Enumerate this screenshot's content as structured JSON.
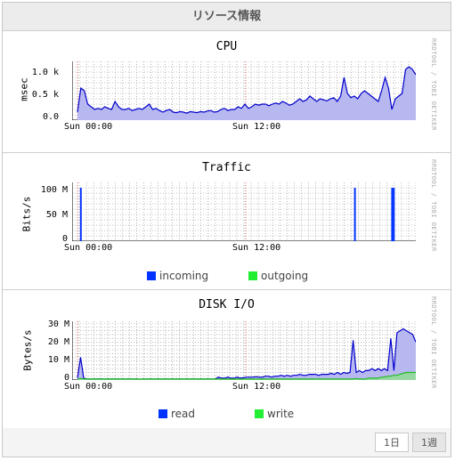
{
  "header": {
    "title": "リソース情報"
  },
  "watermark": "RRDTOOL / TOBI OETIKER",
  "x_ticks": [
    "Sun 00:00",
    "Sun 12:00"
  ],
  "cpu": {
    "title": "CPU",
    "ylabel": "msec",
    "y_ticks": [
      "1.0 k",
      "0.5 k",
      "0.0"
    ],
    "chart_data": {
      "type": "area",
      "title": "CPU",
      "ylabel": "msec",
      "ylim": [
        0,
        1.1
      ],
      "unit": "k",
      "x_ticks": [
        "Sun 00:00",
        "Sun 12:00"
      ],
      "series": [
        {
          "color": "#0000cc",
          "fill": "#b8b8f0",
          "values": [
            0.15,
            0.6,
            0.55,
            0.3,
            0.25,
            0.2,
            0.22,
            0.2,
            0.25,
            0.22,
            0.2,
            0.35,
            0.25,
            0.2,
            0.2,
            0.22,
            0.18,
            0.2,
            0.22,
            0.2,
            0.25,
            0.3,
            0.2,
            0.22,
            0.18,
            0.15,
            0.18,
            0.2,
            0.15,
            0.14,
            0.16,
            0.15,
            0.13,
            0.16,
            0.15,
            0.14,
            0.16,
            0.15,
            0.17,
            0.18,
            0.15,
            0.16,
            0.2,
            0.22,
            0.18,
            0.2,
            0.2,
            0.25,
            0.22,
            0.3,
            0.22,
            0.25,
            0.3,
            0.28,
            0.3,
            0.3,
            0.27,
            0.3,
            0.32,
            0.3,
            0.35,
            0.32,
            0.28,
            0.3,
            0.35,
            0.4,
            0.35,
            0.38,
            0.45,
            0.4,
            0.35,
            0.4,
            0.38,
            0.36,
            0.4,
            0.42,
            0.35,
            0.45,
            0.8,
            0.5,
            0.42,
            0.45,
            0.4,
            0.5,
            0.55,
            0.5,
            0.45,
            0.4,
            0.35,
            0.55,
            0.8,
            0.6,
            0.2,
            0.4,
            0.45,
            0.5,
            0.95,
            1.0,
            0.95,
            0.85
          ]
        }
      ]
    }
  },
  "traffic": {
    "title": "Traffic",
    "ylabel": "Bits/s",
    "y_ticks": [
      "100 M",
      "50 M",
      "0"
    ],
    "chart_data": {
      "type": "line",
      "title": "Traffic",
      "ylabel": "Bits/s",
      "ylim": [
        0,
        110
      ],
      "unit": "M",
      "x_ticks": [
        "Sun 00:00",
        "Sun 12:00"
      ],
      "series": [
        {
          "name": "incoming",
          "color": "#0033ff",
          "spikes": [
            [
              0.01,
              100
            ],
            [
              0.82,
              100
            ],
            [
              0.93,
              100
            ],
            [
              0.935,
              100
            ]
          ]
        },
        {
          "name": "outgoing",
          "color": "#00ee33",
          "spikes": []
        }
      ]
    },
    "legend": [
      {
        "label": "incoming",
        "color": "#0033ff"
      },
      {
        "label": "outgoing",
        "color": "#22ee33"
      }
    ]
  },
  "disk": {
    "title": "DISK I/O",
    "ylabel": "Bytes/s",
    "y_ticks": [
      "30 M",
      "20 M",
      "10 M",
      "0"
    ],
    "chart_data": {
      "type": "area",
      "title": "DISK I/O",
      "ylabel": "Bytes/s",
      "ylim": [
        0,
        31
      ],
      "unit": "M",
      "x_ticks": [
        "Sun 00:00",
        "Sun 12:00"
      ],
      "series": [
        {
          "name": "read",
          "color": "#0000cc",
          "fill": "#b8b8f0",
          "values": [
            1,
            12,
            1,
            0.5,
            0.5,
            0.5,
            0.5,
            0.6,
            0.5,
            0.5,
            0.5,
            0.5,
            0.5,
            0.5,
            0.5,
            0.5,
            0.5,
            0.5,
            0.5,
            0.5,
            0.4,
            0.5,
            0.5,
            0.5,
            0.5,
            0.5,
            0.5,
            0.5,
            0.5,
            0.5,
            0.5,
            0.5,
            0.5,
            0.5,
            0.5,
            0.5,
            0.5,
            0.5,
            0.5,
            0.5,
            0.5,
            0.5,
            0.5,
            0.5,
            0.5,
            1.5,
            1,
            1,
            1.5,
            1,
            1,
            1.5,
            1,
            1.2,
            1.5,
            1.5,
            1.5,
            1.8,
            1.5,
            1.5,
            2,
            2,
            1.5,
            2,
            2,
            2.5,
            2,
            2.5,
            2,
            2.5,
            2.5,
            3,
            2.5,
            2.5,
            3,
            3,
            3,
            2.5,
            3,
            3,
            3,
            3.5,
            3,
            4,
            3,
            4,
            3.5,
            4,
            21,
            4,
            5,
            4,
            5,
            5,
            6,
            5,
            6,
            5,
            6,
            5,
            22,
            5,
            25,
            26,
            27,
            26,
            25,
            24,
            20
          ]
        },
        {
          "name": "write",
          "color": "#22bb22",
          "fill": "#8ee08e",
          "values": [
            0.5,
            0.8,
            0.6,
            0.5,
            0.5,
            0.5,
            0.5,
            0.5,
            0.5,
            0.5,
            0.5,
            0.5,
            0.5,
            0.5,
            0.5,
            0.5,
            0.5,
            0.5,
            0.5,
            0.5,
            0.5,
            0.5,
            0.5,
            0.5,
            0.5,
            0.5,
            0.5,
            0.5,
            0.5,
            0.5,
            0.5,
            0.5,
            0.5,
            0.5,
            0.5,
            0.5,
            0.5,
            0.5,
            0.5,
            0.5,
            0.5,
            0.5,
            0.5,
            0.5,
            0.5,
            0.5,
            0.5,
            0.5,
            0.5,
            0.5,
            0.5,
            0.5,
            0.5,
            0.5,
            0.5,
            0.5,
            0.5,
            0.5,
            0.5,
            0.5,
            0.5,
            0.5,
            0.5,
            0.5,
            0.5,
            0.5,
            0.5,
            0.5,
            0.5,
            0.5,
            0.5,
            0.5,
            0.5,
            0.5,
            0.5,
            0.5,
            0.5,
            0.5,
            0.5,
            0.5,
            0.5,
            0.5,
            0.5,
            0.5,
            0.5,
            0.5,
            0.5,
            0.5,
            0.8,
            0.5,
            0.5,
            0.5,
            1,
            1,
            1,
            1,
            1.5,
            1.5,
            2,
            2,
            2.5,
            2.5,
            3,
            3.5,
            4,
            4,
            4,
            4
          ]
        }
      ]
    },
    "legend": [
      {
        "label": "read",
        "color": "#0033ff"
      },
      {
        "label": "write",
        "color": "#22ee33"
      }
    ]
  },
  "footer": {
    "buttons": [
      {
        "label": "1日",
        "active": false
      },
      {
        "label": "1週",
        "active": true
      }
    ]
  }
}
